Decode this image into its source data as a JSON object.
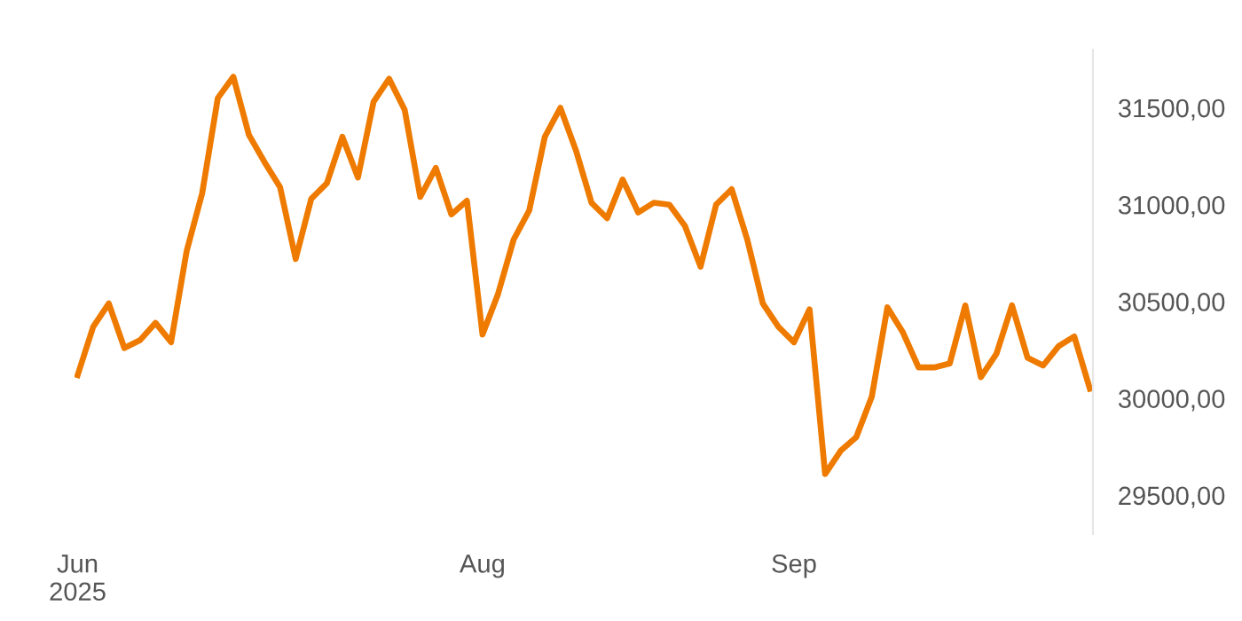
{
  "chart_data": {
    "type": "line",
    "categories": [
      "Jun\n2025",
      null,
      null,
      null,
      null,
      null,
      null,
      null,
      null,
      null,
      null,
      null,
      null,
      null,
      null,
      null,
      null,
      null,
      null,
      null,
      null,
      null,
      null,
      null,
      null,
      null,
      "Aug",
      null,
      null,
      null,
      null,
      null,
      null,
      null,
      null,
      null,
      null,
      null,
      null,
      null,
      null,
      null,
      null,
      null,
      null,
      null,
      "Sep",
      null,
      null,
      null,
      null,
      null,
      null,
      null,
      null,
      null,
      null,
      null,
      null,
      null,
      null,
      null,
      null,
      null,
      null,
      null
    ],
    "series": [
      {
        "color": "#ee7a00",
        "values": [
          30120,
          30370,
          30490,
          30260,
          30300,
          30390,
          30290,
          30760,
          31060,
          31550,
          31660,
          31360,
          31220,
          31090,
          30720,
          31030,
          31110,
          31350,
          31140,
          31530,
          31650,
          31490,
          31040,
          31190,
          30950,
          31020,
          30330,
          30540,
          30820,
          30970,
          31350,
          31500,
          31280,
          31010,
          30930,
          31130,
          30960,
          31010,
          31000,
          30890,
          30680,
          31000,
          31080,
          30820,
          30490,
          30370,
          30290,
          30460,
          29610,
          29730,
          29800,
          30010,
          30470,
          30340,
          30160,
          30160,
          30180,
          30480,
          30110,
          30230,
          30480,
          30210,
          30170,
          30270,
          30320,
          30050
        ]
      }
    ],
    "ylim": [
      29300,
      31800
    ],
    "yticks": [
      {
        "value": 29500,
        "label": "29500,00"
      },
      {
        "value": 30000,
        "label": "30000,00"
      },
      {
        "value": 30500,
        "label": "30500,00"
      },
      {
        "value": 31000,
        "label": "31000,00"
      },
      {
        "value": 31500,
        "label": "31500,00"
      }
    ],
    "grid": false,
    "marker": "none",
    "line_style": "solid"
  }
}
